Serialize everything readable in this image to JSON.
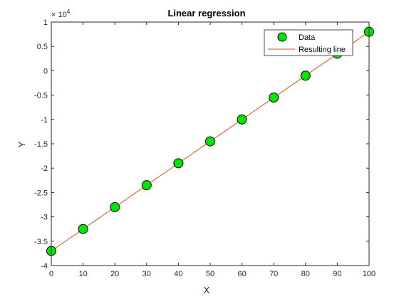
{
  "chart_data": {
    "type": "scatter",
    "title": "Linear regression",
    "xlabel": "X",
    "ylabel": "Y",
    "y_exponent_base": "× 10",
    "y_exponent_power": "4",
    "xlim": [
      0,
      100
    ],
    "ylim": [
      -4,
      1
    ],
    "x_ticks": [
      "0",
      "10",
      "20",
      "30",
      "40",
      "50",
      "60",
      "70",
      "80",
      "90",
      "100"
    ],
    "y_ticks": [
      "-4",
      "-3.5",
      "-3",
      "-2.5",
      "-2",
      "-1.5",
      "-1",
      "-0.5",
      "0",
      "0.5",
      "1"
    ],
    "grid": false,
    "legend_position": "top-right",
    "series": [
      {
        "name": "Data",
        "kind": "markers",
        "color": "#00e600",
        "edge_color": "#000000",
        "x": [
          0,
          10,
          20,
          30,
          40,
          50,
          60,
          70,
          80,
          90,
          100
        ],
        "y": [
          -3.7,
          -3.25,
          -2.8,
          -2.35,
          -1.9,
          -1.45,
          -1.0,
          -0.55,
          -0.1,
          0.35,
          0.8
        ]
      },
      {
        "name": "Resulting line",
        "kind": "line",
        "color": "#d95319",
        "x": [
          0,
          100
        ],
        "y": [
          -3.7,
          0.8
        ]
      }
    ]
  }
}
